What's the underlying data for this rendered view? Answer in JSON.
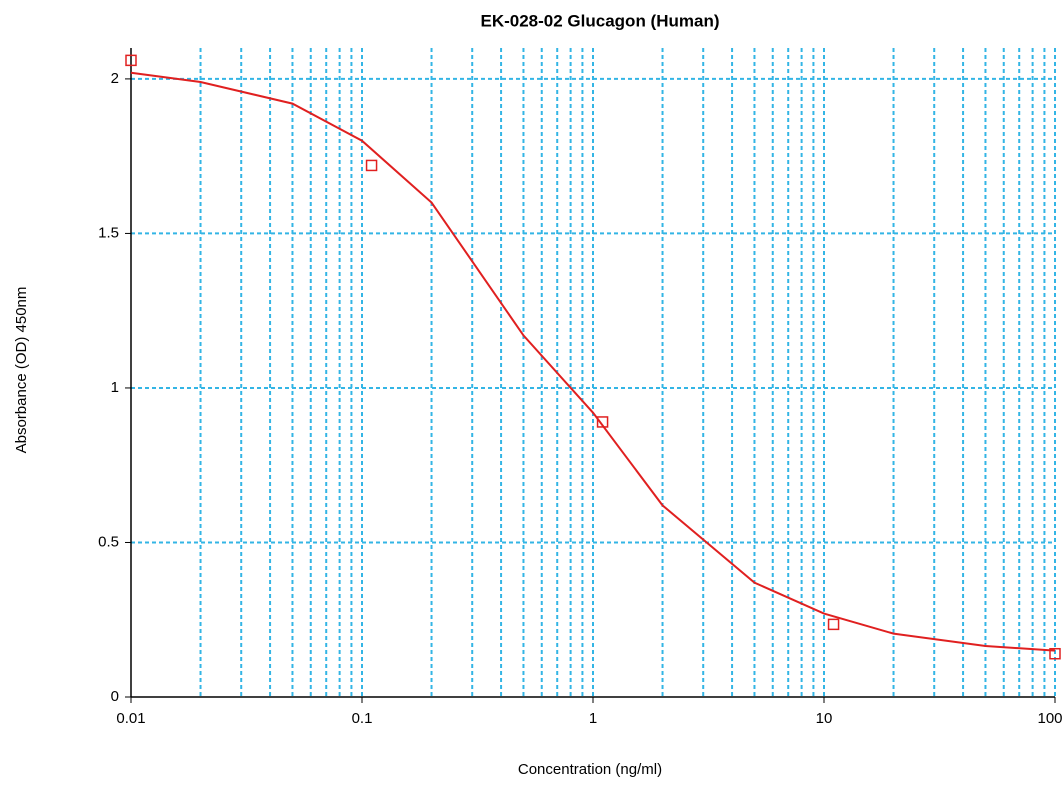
{
  "chart_data": {
    "type": "scatter",
    "title": "EK-028-02 Glucagon (Human)",
    "x_label": "Concentration (ng/ml)",
    "y_label": "Absorbance (OD) 450nm",
    "xlog": true,
    "xlim": [
      0.01,
      100
    ],
    "ylim": [
      0,
      2.1
    ],
    "xticks": [
      0.01,
      0.1,
      1,
      10,
      100
    ],
    "xminor": [
      0.02,
      0.03,
      0.04,
      0.05,
      0.06,
      0.07,
      0.08,
      0.09,
      0.2,
      0.3,
      0.4,
      0.5,
      0.6,
      0.7,
      0.8,
      0.9,
      2,
      3,
      4,
      5,
      6,
      7,
      8,
      9,
      20,
      30,
      40,
      50,
      60,
      70,
      80,
      90
    ],
    "yticks": [
      0,
      0.5,
      1,
      1.5,
      2
    ],
    "grid": true,
    "grid_color": "#33b5e5",
    "series": [
      {
        "kind": "line",
        "color": "#e02020",
        "x": [
          0.01,
          0.02,
          0.05,
          0.1,
          0.2,
          0.5,
          1,
          2,
          5,
          10,
          20,
          50,
          100
        ],
        "values": [
          2.02,
          1.99,
          1.92,
          1.8,
          1.6,
          1.17,
          0.92,
          0.62,
          0.37,
          0.27,
          0.205,
          0.165,
          0.15
        ]
      },
      {
        "kind": "points",
        "color": "#e02020",
        "x": [
          0.01,
          0.11,
          1.1,
          11,
          100
        ],
        "values": [
          2.06,
          1.72,
          0.89,
          0.235,
          0.14
        ]
      }
    ]
  }
}
